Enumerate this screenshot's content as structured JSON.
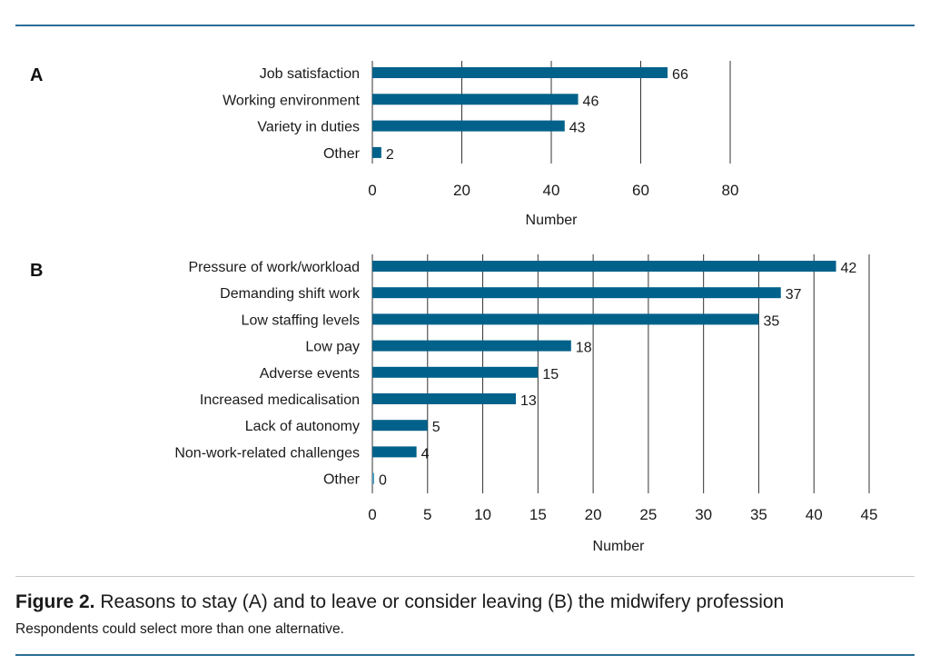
{
  "figure": {
    "label": "Figure 2.",
    "title": " Reasons to stay (A) and to leave or consider leaving (B) the midwifery profession",
    "note": "Respondents could select more than one alternative."
  },
  "colors": {
    "bar": "#00618a",
    "rule": "#2a6e96",
    "grid": "#333333"
  },
  "chart_data": [
    {
      "type": "bar",
      "orientation": "horizontal",
      "panel": "A",
      "categories": [
        "Job satisfaction",
        "Working environment",
        "Variety in duties",
        "Other"
      ],
      "values": [
        66,
        46,
        43,
        2
      ],
      "xlabel": "Number",
      "xlim": [
        0,
        80
      ],
      "ticks": [
        0,
        20,
        40,
        60,
        80
      ],
      "grid": true,
      "data_labels": true
    },
    {
      "type": "bar",
      "orientation": "horizontal",
      "panel": "B",
      "categories": [
        "Pressure of work/workload",
        "Demanding shift work",
        "Low staffing levels",
        "Low pay",
        "Adverse events",
        "Increased medicalisation",
        "Lack of autonomy",
        "Non-work-related challenges",
        "Other"
      ],
      "values": [
        42,
        37,
        35,
        18,
        15,
        13,
        5,
        4,
        0
      ],
      "xlabel": "Number",
      "xlim": [
        0,
        45
      ],
      "ticks": [
        0,
        5,
        10,
        15,
        20,
        25,
        30,
        35,
        40,
        45
      ],
      "grid": true,
      "data_labels": true
    }
  ]
}
